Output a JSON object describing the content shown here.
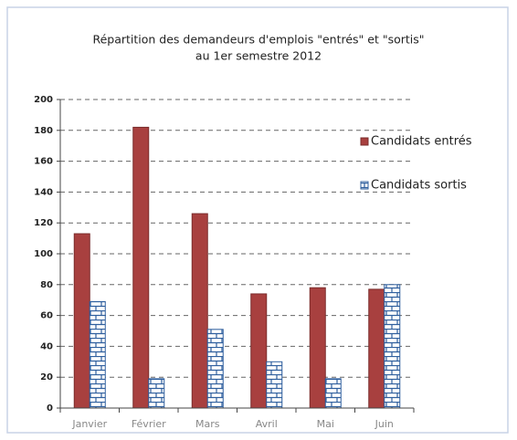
{
  "chart_data": {
    "type": "bar",
    "title": [
      "Répartition des demandeurs d'emplois \"entrés\" et \"sortis\"",
      "au 1er semestre 2012"
    ],
    "categories": [
      "Janvier",
      "Février",
      "Mars",
      "Avril",
      "Mai",
      "Juin"
    ],
    "series": [
      {
        "name": "Candidats entrés",
        "color": "#a8403f",
        "values": [
          113,
          182,
          126,
          74,
          78,
          77
        ]
      },
      {
        "name": "Candidats sortis",
        "color": "#2f5f9e",
        "pattern": "brick",
        "values": [
          69,
          19,
          51,
          30,
          19,
          80
        ]
      }
    ],
    "ylim": [
      0,
      200
    ],
    "yticks": [
      0,
      20,
      40,
      60,
      80,
      100,
      120,
      140,
      160,
      180,
      200
    ],
    "grid": true,
    "legend": "right"
  }
}
